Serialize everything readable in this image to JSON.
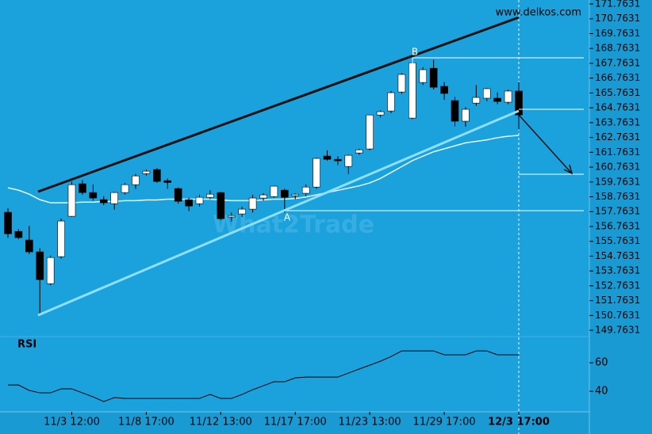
{
  "chart_data": {
    "type": "candlestick",
    "site": "www.delkos.com",
    "watermark": "What2Trade",
    "indicator_label": "RSI",
    "point_labels": [
      "A",
      "B"
    ],
    "categories": [
      null,
      null,
      null,
      null,
      null,
      null,
      "11/3 12:00",
      null,
      null,
      null,
      null,
      null,
      null,
      "11/8 17:00",
      null,
      null,
      null,
      null,
      null,
      null,
      "11/12 13:00",
      null,
      null,
      null,
      null,
      null,
      null,
      "11/17 17:00",
      null,
      null,
      null,
      null,
      null,
      null,
      "11/23 13:00",
      null,
      null,
      null,
      null,
      null,
      null,
      "11/29 17:00",
      null,
      null,
      null,
      null,
      null,
      null,
      "12/3 17:00"
    ],
    "open": [
      157.72,
      156.43,
      155.85,
      155.05,
      152.91,
      154.73,
      157.45,
      159.64,
      159.05,
      158.57,
      158.3,
      159.05,
      159.58,
      160.33,
      160.6,
      159.85,
      159.32,
      158.57,
      158.3,
      158.73,
      159.05,
      157.4,
      157.61,
      157.93,
      158.68,
      158.78,
      159.21,
      158.84,
      159.0,
      159.42,
      161.51,
      161.29,
      160.81,
      161.72,
      161.99,
      164.28,
      164.55,
      165.83,
      164.07,
      166.47,
      167.43,
      166.21,
      165.25,
      163.86,
      165.08,
      165.41,
      165.41,
      165.14,
      165.89
    ],
    "high": [
      158.0,
      156.6,
      156.81,
      155.3,
      154.8,
      157.3,
      159.8,
      159.9,
      159.6,
      158.8,
      159.1,
      159.7,
      160.3,
      160.6,
      160.7,
      160.0,
      159.4,
      158.7,
      158.9,
      159.2,
      159.1,
      157.7,
      158.1,
      158.9,
      159.0,
      159.5,
      159.3,
      159.0,
      159.6,
      161.4,
      161.9,
      161.5,
      161.6,
      162.0,
      164.3,
      164.6,
      165.9,
      167.1,
      167.97,
      167.5,
      168.0,
      166.5,
      165.5,
      164.8,
      166.3,
      166.1,
      165.8,
      166.0,
      166.5
    ],
    "low": [
      156.0,
      155.9,
      154.9,
      150.77,
      152.8,
      154.6,
      157.4,
      158.9,
      158.5,
      158.2,
      157.9,
      158.9,
      159.3,
      160.2,
      159.7,
      159.3,
      158.3,
      157.8,
      158.1,
      158.6,
      157.2,
      157.1,
      157.4,
      157.7,
      158.5,
      158.7,
      157.7,
      158.6,
      158.8,
      159.3,
      161.2,
      160.9,
      160.3,
      161.6,
      161.9,
      164.1,
      164.4,
      165.7,
      164.0,
      166.3,
      166.0,
      165.3,
      163.5,
      163.5,
      164.9,
      165.2,
      165.0,
      165.0,
      163.3
    ],
    "close": [
      156.27,
      156.01,
      155.05,
      153.18,
      154.67,
      157.13,
      159.58,
      159.05,
      158.68,
      158.36,
      159.05,
      159.58,
      160.17,
      160.49,
      159.8,
      159.73,
      158.46,
      158.14,
      158.73,
      158.94,
      157.29,
      157.5,
      157.93,
      158.68,
      158.89,
      159.48,
      158.73,
      158.94,
      159.42,
      161.35,
      161.29,
      161.19,
      161.56,
      161.93,
      164.28,
      164.5,
      165.78,
      167.01,
      167.8,
      167.33,
      166.15,
      165.73,
      163.86,
      164.66,
      165.46,
      166.05,
      165.19,
      165.89,
      164.28
    ],
    "ma": [
      159.37,
      159.21,
      158.94,
      158.57,
      158.36,
      158.36,
      158.36,
      158.4,
      158.4,
      158.45,
      158.45,
      158.5,
      158.5,
      158.55,
      158.55,
      158.6,
      158.6,
      158.6,
      158.6,
      158.6,
      158.55,
      158.5,
      158.5,
      158.5,
      158.55,
      158.6,
      158.6,
      158.65,
      158.75,
      158.9,
      159.05,
      159.2,
      159.35,
      159.5,
      159.7,
      160.0,
      160.4,
      160.8,
      161.2,
      161.5,
      161.8,
      162.0,
      162.2,
      162.4,
      162.5,
      162.6,
      162.75,
      162.85,
      162.9
    ],
    "rsi": [
      44.4,
      44.4,
      40.6,
      38.9,
      38.9,
      41.7,
      41.7,
      38.9,
      36.1,
      32.8,
      35.6,
      35,
      35,
      35,
      35,
      35,
      35,
      35,
      35,
      37.8,
      35,
      35,
      37.8,
      41.1,
      43.9,
      46.7,
      46.7,
      49.4,
      50,
      50,
      50,
      50,
      52.8,
      55.6,
      58.3,
      61.1,
      64.4,
      68.3,
      68.3,
      68.3,
      68.3,
      65.6,
      65.6,
      65.6,
      68.3,
      68.3,
      65.6,
      65.6,
      65.6
    ],
    "ylim": [
      149.5,
      172.03
    ],
    "yticks": [
      149.7631,
      150.7631,
      151.7631,
      152.7631,
      153.7631,
      154.7631,
      155.7631,
      156.7631,
      157.7631,
      158.7631,
      159.7631,
      160.7631,
      161.7631,
      162.7631,
      163.7631,
      164.7631,
      165.7631,
      166.7631,
      167.7631,
      168.7631,
      169.7631,
      170.7631,
      171.7631
    ],
    "y2lim": [
      25.6,
      75.6
    ],
    "y2ticks": [
      60,
      40
    ],
    "up_color": "#ffffff",
    "down_color": "#000000",
    "ma_color": "#e8f6ff",
    "rsi_color": "#000000"
  }
}
